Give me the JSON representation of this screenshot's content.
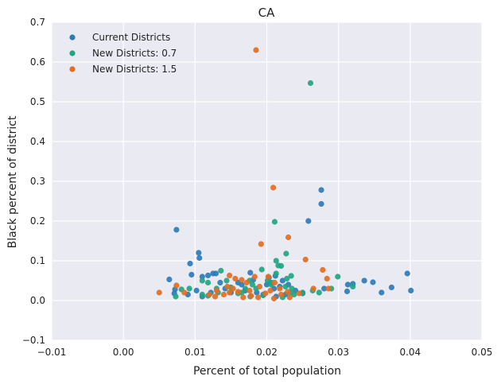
{
  "chart_data": {
    "type": "scatter",
    "title": "CA",
    "xlabel": "Percent of total population",
    "ylabel": "Black percent of district",
    "xlim": [
      -0.01,
      0.05
    ],
    "ylim": [
      -0.1,
      0.7
    ],
    "xticks": [
      -0.01,
      0.0,
      0.01,
      0.02,
      0.03,
      0.04,
      0.05
    ],
    "xtick_labels": [
      "−0.01",
      "0.00",
      "0.01",
      "0.02",
      "0.03",
      "0.04",
      "0.05"
    ],
    "yticks": [
      -0.1,
      0.0,
      0.1,
      0.2,
      0.3,
      0.4,
      0.5,
      0.6,
      0.7
    ],
    "ytick_labels": [
      "−0.1",
      "0.0",
      "0.1",
      "0.2",
      "0.3",
      "0.4",
      "0.5",
      "0.6",
      "0.7"
    ],
    "grid": true,
    "background": "#EAEAF2",
    "legend_position": "top-left",
    "series": [
      {
        "name": "Current Districts",
        "color": "#2B7BB9",
        "points": [
          [
            0.0074,
            0.178
          ],
          [
            0.0276,
            0.278
          ],
          [
            0.0276,
            0.243
          ],
          [
            0.0258,
            0.2
          ],
          [
            0.0105,
            0.12
          ],
          [
            0.0106,
            0.107
          ],
          [
            0.0093,
            0.093
          ],
          [
            0.0095,
            0.065
          ],
          [
            0.0064,
            0.053
          ],
          [
            0.011,
            0.06
          ],
          [
            0.0118,
            0.063
          ],
          [
            0.0125,
            0.068
          ],
          [
            0.0129,
            0.068
          ],
          [
            0.0396,
            0.068
          ],
          [
            0.0336,
            0.05
          ],
          [
            0.0348,
            0.046
          ],
          [
            0.0313,
            0.04
          ],
          [
            0.032,
            0.042
          ],
          [
            0.0374,
            0.033
          ],
          [
            0.036,
            0.02
          ],
          [
            0.0401,
            0.025
          ],
          [
            0.0312,
            0.023
          ],
          [
            0.0072,
            0.028
          ],
          [
            0.0071,
            0.018
          ],
          [
            0.009,
            0.015
          ],
          [
            0.0102,
            0.025
          ],
          [
            0.011,
            0.01
          ],
          [
            0.0135,
            0.045
          ],
          [
            0.016,
            0.045
          ],
          [
            0.0177,
            0.07
          ],
          [
            0.0181,
            0.052
          ],
          [
            0.02,
            0.04
          ],
          [
            0.0205,
            0.045
          ],
          [
            0.0212,
            0.062
          ],
          [
            0.0218,
            0.035
          ],
          [
            0.0222,
            0.05
          ],
          [
            0.023,
            0.04
          ],
          [
            0.0186,
            0.02
          ],
          [
            0.0195,
            0.015
          ],
          [
            0.0213,
            0.01
          ],
          [
            0.024,
            0.025
          ],
          [
            0.025,
            0.018
          ],
          [
            0.028,
            0.03
          ],
          [
            0.0142,
            0.03
          ],
          [
            0.015,
            0.02
          ],
          [
            0.017,
            0.025
          ],
          [
            0.0165,
            0.04
          ],
          [
            0.0203,
            0.058
          ],
          [
            0.021,
            0.03
          ],
          [
            0.0226,
            0.015
          ],
          [
            0.0122,
            0.02
          ]
        ]
      },
      {
        "name": "New Districts: 0.7",
        "color": "#1FA582",
        "points": [
          [
            0.0261,
            0.547
          ],
          [
            0.0211,
            0.198
          ],
          [
            0.0227,
            0.118
          ],
          [
            0.0213,
            0.1
          ],
          [
            0.0216,
            0.088
          ],
          [
            0.022,
            0.087
          ],
          [
            0.0193,
            0.078
          ],
          [
            0.0136,
            0.075
          ],
          [
            0.0213,
            0.068
          ],
          [
            0.0234,
            0.062
          ],
          [
            0.0299,
            0.06
          ],
          [
            0.0228,
            0.055
          ],
          [
            0.0144,
            0.05
          ],
          [
            0.011,
            0.05
          ],
          [
            0.0118,
            0.045
          ],
          [
            0.0176,
            0.05
          ],
          [
            0.0201,
            0.05
          ],
          [
            0.0207,
            0.045
          ],
          [
            0.032,
            0.035
          ],
          [
            0.0092,
            0.03
          ],
          [
            0.0081,
            0.028
          ],
          [
            0.015,
            0.033
          ],
          [
            0.017,
            0.03
          ],
          [
            0.0185,
            0.03
          ],
          [
            0.0206,
            0.04
          ],
          [
            0.0226,
            0.035
          ],
          [
            0.0233,
            0.02
          ],
          [
            0.0264,
            0.025
          ],
          [
            0.029,
            0.03
          ],
          [
            0.0073,
            0.01
          ],
          [
            0.011,
            0.015
          ],
          [
            0.0132,
            0.02
          ],
          [
            0.016,
            0.018
          ],
          [
            0.0177,
            0.01
          ],
          [
            0.0195,
            0.013
          ],
          [
            0.0222,
            0.008
          ],
          [
            0.025,
            0.02
          ],
          [
            0.0273,
            0.02
          ],
          [
            0.013,
            0.03
          ],
          [
            0.0165,
            0.02
          ],
          [
            0.0235,
            0.03
          ],
          [
            0.018,
            0.04
          ],
          [
            0.0118,
            0.012
          ],
          [
            0.0238,
            0.015
          ]
        ]
      },
      {
        "name": "New Districts: 1.5",
        "color": "#E36E22",
        "points": [
          [
            0.0185,
            0.63
          ],
          [
            0.0209,
            0.284
          ],
          [
            0.023,
            0.159
          ],
          [
            0.0192,
            0.142
          ],
          [
            0.0254,
            0.103
          ],
          [
            0.0278,
            0.077
          ],
          [
            0.0284,
            0.055
          ],
          [
            0.0148,
            0.063
          ],
          [
            0.0156,
            0.055
          ],
          [
            0.0165,
            0.052
          ],
          [
            0.0172,
            0.045
          ],
          [
            0.0183,
            0.06
          ],
          [
            0.019,
            0.035
          ],
          [
            0.0202,
            0.06
          ],
          [
            0.0211,
            0.045
          ],
          [
            0.0218,
            0.03
          ],
          [
            0.0074,
            0.038
          ],
          [
            0.005,
            0.02
          ],
          [
            0.0085,
            0.02
          ],
          [
            0.013,
            0.025
          ],
          [
            0.0145,
            0.035
          ],
          [
            0.0153,
            0.03
          ],
          [
            0.016,
            0.022
          ],
          [
            0.0176,
            0.025
          ],
          [
            0.0198,
            0.018
          ],
          [
            0.0205,
            0.025
          ],
          [
            0.0229,
            0.022
          ],
          [
            0.0245,
            0.018
          ],
          [
            0.0286,
            0.03
          ],
          [
            0.0265,
            0.03
          ],
          [
            0.012,
            0.015
          ],
          [
            0.0128,
            0.01
          ],
          [
            0.014,
            0.015
          ],
          [
            0.0167,
            0.008
          ],
          [
            0.0178,
            0.012
          ],
          [
            0.0188,
            0.008
          ],
          [
            0.021,
            0.005
          ],
          [
            0.022,
            0.015
          ],
          [
            0.0232,
            0.008
          ],
          [
            0.0148,
            0.02
          ]
        ]
      }
    ]
  }
}
